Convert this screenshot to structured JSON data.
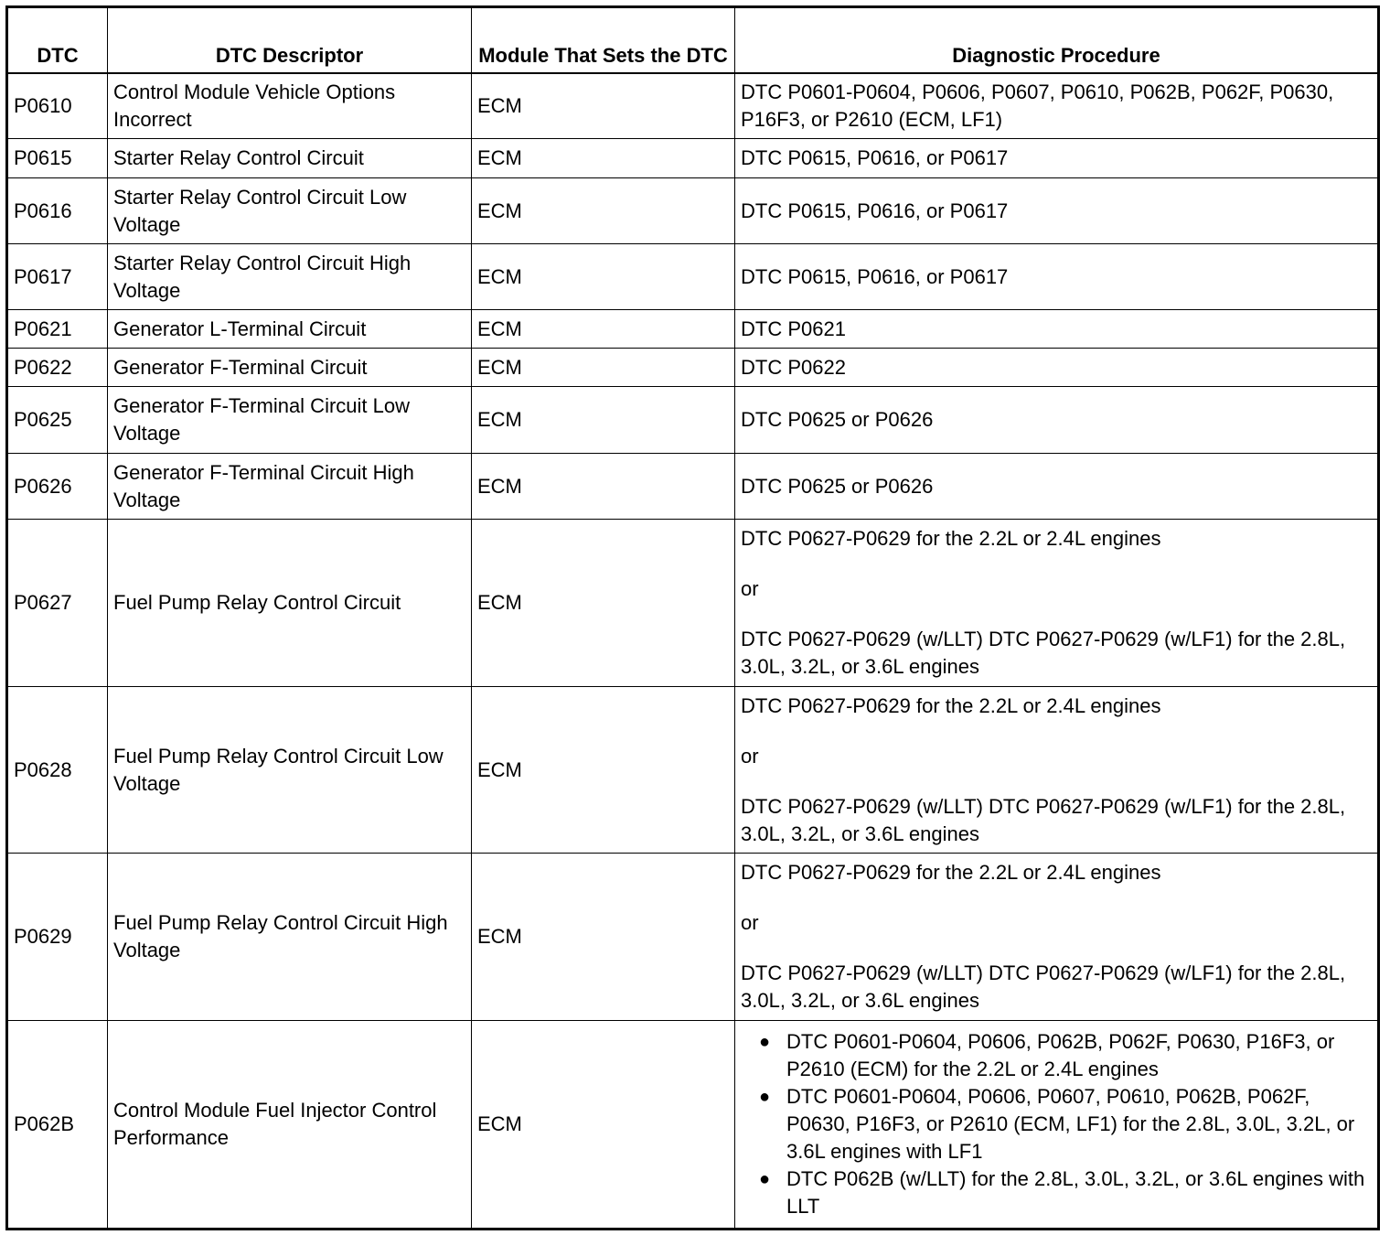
{
  "table": {
    "headers": [
      "DTC",
      "DTC Descriptor",
      "Module That Sets the DTC",
      "Diagnostic Procedure"
    ],
    "rows": [
      {
        "dtc": "P0610",
        "descriptor": "Control Module Vehicle Options Incorrect",
        "module": "ECM",
        "procedure": [
          "DTC P0601-P0604, P0606, P0607, P0610, P062B, P062F, P0630, P16F3, or P2610 (ECM, LF1)"
        ]
      },
      {
        "dtc": "P0615",
        "descriptor": "Starter Relay Control Circuit",
        "module": "ECM",
        "procedure": [
          "DTC P0615, P0616, or P0617"
        ]
      },
      {
        "dtc": "P0616",
        "descriptor": "Starter Relay Control Circuit Low Voltage",
        "module": "ECM",
        "procedure": [
          "DTC P0615, P0616, or P0617"
        ]
      },
      {
        "dtc": "P0617",
        "descriptor": "Starter Relay Control Circuit High Voltage",
        "module": "ECM",
        "procedure": [
          "DTC P0615, P0616, or P0617"
        ]
      },
      {
        "dtc": "P0621",
        "descriptor": "Generator L-Terminal Circuit",
        "module": "ECM",
        "procedure": [
          "DTC P0621"
        ]
      },
      {
        "dtc": "P0622",
        "descriptor": "Generator F-Terminal Circuit",
        "module": "ECM",
        "procedure": [
          "DTC P0622"
        ]
      },
      {
        "dtc": "P0625",
        "descriptor": "Generator F-Terminal Circuit Low Voltage",
        "module": "ECM",
        "procedure": [
          "DTC P0625 or P0626"
        ]
      },
      {
        "dtc": "P0626",
        "descriptor": "Generator F-Terminal Circuit High Voltage",
        "module": "ECM",
        "procedure": [
          "DTC P0625 or P0626"
        ]
      },
      {
        "dtc": "P0627",
        "descriptor": "Fuel Pump Relay Control Circuit",
        "module": "ECM",
        "procedure": [
          "DTC P0627-P0629 for the 2.2L or 2.4L engines",
          "or",
          "DTC P0627-P0629 (w/LLT) DTC P0627-P0629 (w/LF1) for the 2.8L, 3.0L, 3.2L, or 3.6L engines"
        ]
      },
      {
        "dtc": "P0628",
        "descriptor": "Fuel Pump Relay Control Circuit Low Voltage",
        "module": "ECM",
        "procedure": [
          "DTC P0627-P0629 for the 2.2L or 2.4L engines",
          "or",
          "DTC P0627-P0629 (w/LLT) DTC P0627-P0629 (w/LF1) for the 2.8L, 3.0L, 3.2L, or 3.6L engines"
        ]
      },
      {
        "dtc": "P0629",
        "descriptor": "Fuel Pump Relay Control Circuit High Voltage",
        "module": "ECM",
        "procedure": [
          "DTC P0627-P0629 for the 2.2L or 2.4L engines",
          "or",
          "DTC P0627-P0629 (w/LLT) DTC P0627-P0629 (w/LF1) for the 2.8L, 3.0L, 3.2L, or 3.6L engines"
        ]
      },
      {
        "dtc": "P062B",
        "descriptor": "Control Module Fuel Injector Control Performance",
        "module": "ECM",
        "bullets": [
          "DTC P0601-P0604, P0606, P062B, P062F, P0630, P16F3, or P2610 (ECM) for the 2.2L or 2.4L engines",
          "DTC P0601-P0604, P0606, P0607, P0610, P062B, P062F, P0630, P16F3, or P2610 (ECM, LF1) for the 2.8L, 3.0L, 3.2L, or 3.6L engines with LF1",
          "DTC P062B (w/LLT) for the 2.8L, 3.0L, 3.2L, or 3.6L engines with LLT"
        ]
      }
    ]
  }
}
